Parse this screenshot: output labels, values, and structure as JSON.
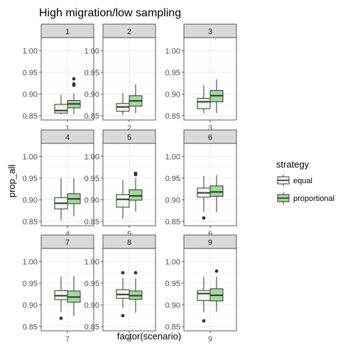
{
  "chart_data": {
    "type": "boxplot",
    "title": "High migration/low sampling",
    "xlabel": "factor(scenario)",
    "ylabel": "prop_all",
    "ylim": [
      0.84,
      1.03
    ],
    "yticks": [
      "0.85",
      "0.90",
      "0.95",
      "1.00"
    ],
    "legend": {
      "title": "strategy",
      "placement": "right",
      "entries": [
        {
          "name": "equal",
          "color": "#edf8e9"
        },
        {
          "name": "proportional",
          "color": "#a1d99b"
        }
      ]
    },
    "panels": [
      {
        "label": "1",
        "x_tick": "1",
        "boxes": [
          {
            "strategy": "equal",
            "q1": 0.856,
            "median": 0.862,
            "q3": 0.876,
            "min": 0.853,
            "max": 0.898,
            "outliers": []
          },
          {
            "strategy": "proportional",
            "q1": 0.868,
            "median": 0.877,
            "q3": 0.885,
            "min": 0.853,
            "max": 0.901,
            "outliers": [
              0.92,
              0.923,
              0.935
            ]
          }
        ]
      },
      {
        "label": "2",
        "x_tick": "2",
        "boxes": [
          {
            "strategy": "equal",
            "q1": 0.86,
            "median": 0.87,
            "q3": 0.878,
            "min": 0.852,
            "max": 0.902,
            "outliers": []
          },
          {
            "strategy": "proportional",
            "q1": 0.872,
            "median": 0.884,
            "q3": 0.896,
            "min": 0.856,
            "max": 0.922,
            "outliers": []
          }
        ]
      },
      {
        "label": "3",
        "x_tick": "3",
        "boxes": [
          {
            "strategy": "equal",
            "q1": 0.866,
            "median": 0.882,
            "q3": 0.89,
            "min": 0.856,
            "max": 0.92,
            "outliers": []
          },
          {
            "strategy": "proportional",
            "q1": 0.882,
            "median": 0.896,
            "q3": 0.908,
            "min": 0.856,
            "max": 0.934,
            "outliers": []
          }
        ]
      },
      {
        "label": "4",
        "x_tick": "4",
        "boxes": [
          {
            "strategy": "equal",
            "q1": 0.879,
            "median": 0.892,
            "q3": 0.905,
            "min": 0.852,
            "max": 0.95,
            "outliers": []
          },
          {
            "strategy": "proportional",
            "q1": 0.891,
            "median": 0.902,
            "q3": 0.914,
            "min": 0.862,
            "max": 0.95,
            "outliers": []
          }
        ]
      },
      {
        "label": "5",
        "x_tick": "5",
        "boxes": [
          {
            "strategy": "equal",
            "q1": 0.883,
            "median": 0.901,
            "q3": 0.912,
            "min": 0.856,
            "max": 0.945,
            "outliers": []
          },
          {
            "strategy": "proportional",
            "q1": 0.899,
            "median": 0.909,
            "q3": 0.923,
            "min": 0.873,
            "max": 0.95,
            "outliers": [
              0.958,
              0.961
            ]
          }
        ]
      },
      {
        "label": "6",
        "x_tick": "6",
        "boxes": [
          {
            "strategy": "equal",
            "q1": 0.906,
            "median": 0.916,
            "q3": 0.927,
            "min": 0.872,
            "max": 0.955,
            "outliers": [
              0.858
            ]
          },
          {
            "strategy": "proportional",
            "q1": 0.908,
            "median": 0.918,
            "q3": 0.932,
            "min": 0.871,
            "max": 0.957,
            "outliers": []
          }
        ]
      },
      {
        "label": "7",
        "x_tick": "7",
        "boxes": [
          {
            "strategy": "equal",
            "q1": 0.912,
            "median": 0.921,
            "q3": 0.933,
            "min": 0.883,
            "max": 0.965,
            "outliers": [
              0.869
            ]
          },
          {
            "strategy": "proportional",
            "q1": 0.906,
            "median": 0.918,
            "q3": 0.932,
            "min": 0.874,
            "max": 0.966,
            "outliers": []
          }
        ]
      },
      {
        "label": "8",
        "x_tick": "8",
        "boxes": [
          {
            "strategy": "equal",
            "q1": 0.915,
            "median": 0.924,
            "q3": 0.935,
            "min": 0.893,
            "max": 0.962,
            "outliers": [
              0.875,
              0.974
            ]
          },
          {
            "strategy": "proportional",
            "q1": 0.913,
            "median": 0.921,
            "q3": 0.932,
            "min": 0.882,
            "max": 0.961,
            "outliers": [
              0.974
            ]
          }
        ]
      },
      {
        "label": "9",
        "x_tick": "9",
        "boxes": [
          {
            "strategy": "equal",
            "q1": 0.91,
            "median": 0.926,
            "q3": 0.933,
            "min": 0.883,
            "max": 0.965,
            "outliers": [
              0.863
            ]
          },
          {
            "strategy": "proportional",
            "q1": 0.909,
            "median": 0.922,
            "q3": 0.937,
            "min": 0.884,
            "max": 0.965,
            "outliers": [
              0.978
            ]
          }
        ]
      }
    ]
  }
}
